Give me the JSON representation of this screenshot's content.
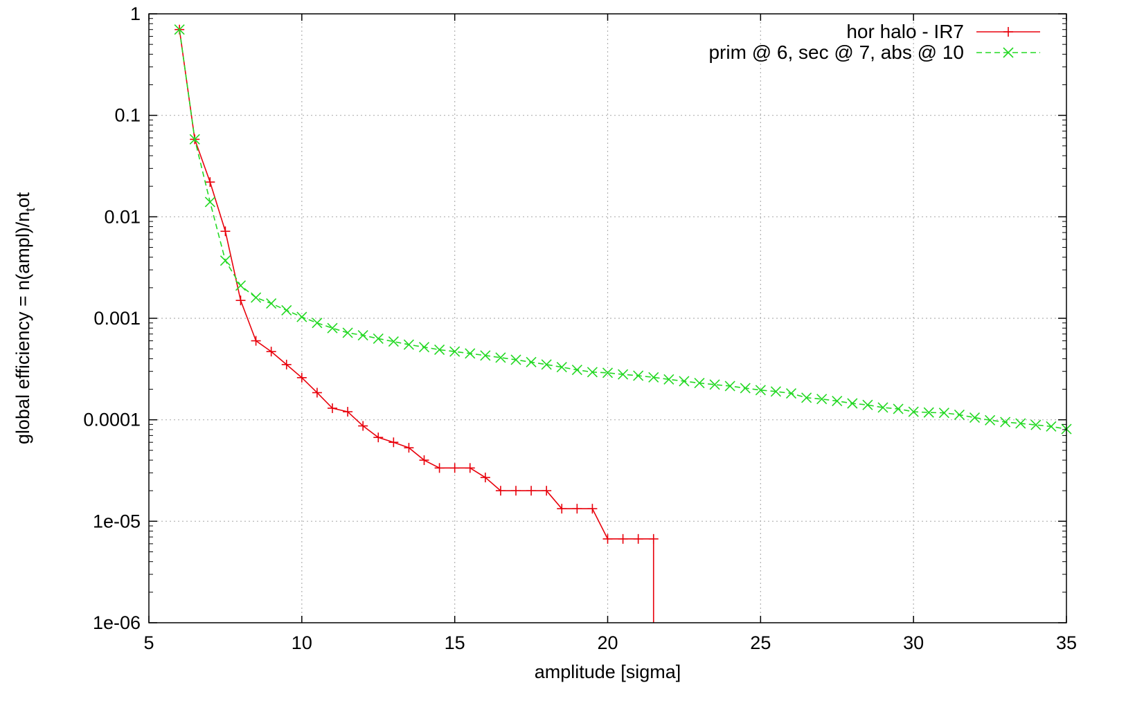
{
  "chart_data": {
    "type": "line",
    "title": "",
    "xlabel": "amplitude [sigma]",
    "ylabel_parts": [
      "global efficiency = n(ampl)/n",
      "t",
      "ot"
    ],
    "xlim": [
      5,
      35
    ],
    "ylim": [
      1e-06,
      1
    ],
    "y_scale": "log",
    "grid": true,
    "legend_position": "top-right",
    "x_ticks": [
      5,
      10,
      15,
      20,
      25,
      30,
      35
    ],
    "x_tick_labels": [
      "5",
      "10",
      "15",
      "20",
      "25",
      "30",
      "35"
    ],
    "y_ticks": [
      1e-06,
      1e-05,
      0.0001,
      0.001,
      0.01,
      0.1,
      1
    ],
    "y_tick_labels": [
      "1e-06",
      "1e-05",
      "0.0001",
      "0.001",
      "0.01",
      "0.1",
      "1"
    ],
    "series": [
      {
        "name": "hor halo - IR7",
        "color": "#e8000b",
        "line_style": "solid",
        "marker": "plus",
        "drop_to_axis_at_end": true,
        "x": [
          6,
          6.5,
          7,
          7.5,
          8,
          8.5,
          9,
          9.5,
          10,
          10.5,
          11,
          11.5,
          12,
          12.5,
          13,
          13.5,
          14,
          14.5,
          15,
          15.5,
          16,
          16.5,
          17,
          17.5,
          18,
          18.5,
          19,
          19.5,
          20,
          20.5,
          21,
          21.5
        ],
        "y": [
          0.7,
          0.058,
          0.022,
          0.0072,
          0.0015,
          0.0006,
          0.00047,
          0.00035,
          0.00026,
          0.000185,
          0.00013,
          0.00012,
          8.7e-05,
          6.7e-05,
          6e-05,
          5.3e-05,
          4e-05,
          3.35e-05,
          3.35e-05,
          3.35e-05,
          2.7e-05,
          2e-05,
          2e-05,
          2e-05,
          2e-05,
          1.33e-05,
          1.33e-05,
          1.33e-05,
          6.7e-06,
          6.7e-06,
          6.7e-06,
          6.7e-06
        ]
      },
      {
        "name": "prim @ 6, sec @ 7, abs @ 10",
        "color": "#22d822",
        "line_style": "dashed",
        "marker": "cross",
        "x": [
          6,
          6.5,
          7,
          7.5,
          8,
          8.5,
          9,
          9.5,
          10,
          10.5,
          11,
          11.5,
          12,
          12.5,
          13,
          13.5,
          14,
          14.5,
          15,
          15.5,
          16,
          16.5,
          17,
          17.5,
          18,
          18.5,
          19,
          19.5,
          20,
          20.5,
          21,
          21.5,
          22,
          22.5,
          23,
          23.5,
          24,
          24.5,
          25,
          25.5,
          26,
          26.5,
          27,
          27.5,
          28,
          28.5,
          29,
          29.5,
          30,
          30.5,
          31,
          31.5,
          32,
          32.5,
          33,
          33.5,
          34,
          34.5,
          35
        ],
        "y": [
          0.7,
          0.058,
          0.014,
          0.0037,
          0.0021,
          0.0016,
          0.0014,
          0.0012,
          0.00103,
          0.0009,
          0.0008,
          0.00072,
          0.00068,
          0.00063,
          0.00059,
          0.00055,
          0.00052,
          0.00049,
          0.00047,
          0.00045,
          0.00043,
          0.00041,
          0.00039,
          0.00037,
          0.00035,
          0.00033,
          0.00031,
          0.000295,
          0.00029,
          0.00028,
          0.000272,
          0.000262,
          0.00025,
          0.00024,
          0.00023,
          0.000222,
          0.000215,
          0.000205,
          0.000196,
          0.00019,
          0.000182,
          0.000165,
          0.00016,
          0.000153,
          0.000145,
          0.00014,
          0.000132,
          0.000128,
          0.00012,
          0.000118,
          0.000117,
          0.000112,
          0.000105,
          9.9e-05,
          9.5e-05,
          9.2e-05,
          8.9e-05,
          8.6e-05,
          8.1e-05
        ]
      }
    ]
  }
}
